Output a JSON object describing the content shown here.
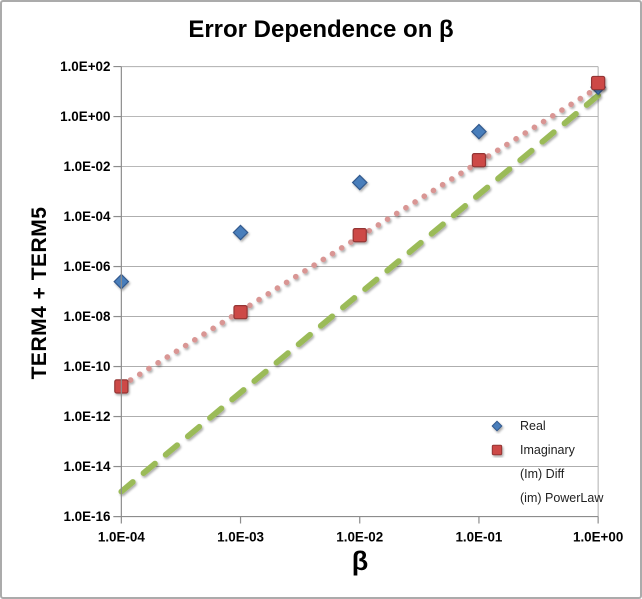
{
  "window": {
    "background": "#ffffff",
    "border_color": "#ababab"
  },
  "chart_data": {
    "type": "scatter",
    "title": "Error Dependence on β",
    "xlabel": "β",
    "ylabel": "TERM4 + TERM5",
    "x_scale": "log",
    "y_scale": "log",
    "xlim": [
      0.0001,
      1
    ],
    "ylim": [
      1e-16,
      100
    ],
    "x_ticks": {
      "values": [
        0.0001,
        0.001,
        0.01,
        0.1,
        1
      ],
      "labels": [
        "1.0E-04",
        "1.0E-03",
        "1.0E-02",
        "1.0E-01",
        "1.0E+00"
      ]
    },
    "y_ticks": {
      "values": [
        100,
        1,
        0.01,
        0.0001,
        1e-06,
        1e-08,
        1e-10,
        1e-12,
        1e-14,
        1e-16
      ],
      "labels": [
        "1.0E+02",
        "1.0E+00",
        "1.0E-02",
        "1.0E-04",
        "1.0E-06",
        "1.0E-08",
        "1.0E-10",
        "1.0E-12",
        "1.0E-14",
        "1.0E-16"
      ]
    },
    "grid": {
      "horizontal": true,
      "vertical": false,
      "right_edge_line": true
    },
    "legend_position": "inside-bottom-right",
    "axis_color": "#8c8c8c",
    "gridline_color": "#aeaeae",
    "series": [
      {
        "name": "Real",
        "type": "scatter",
        "marker": "diamond",
        "color": "#4a7ebb",
        "edge_color": "#30588c",
        "x": [
          0.0001,
          0.001,
          0.01,
          0.1,
          1
        ],
        "y": [
          2.5e-07,
          2.3e-05,
          0.0023,
          0.25,
          15
        ]
      },
      {
        "name": "Imaginary",
        "type": "scatter",
        "marker": "square",
        "color": "#cd4a46",
        "edge_color": "#943634",
        "x": [
          0.0001,
          0.001,
          0.01,
          0.1,
          1
        ],
        "y": [
          1.6e-11,
          1.5e-08,
          1.8e-05,
          0.018,
          22
        ]
      },
      {
        "name": "(Im) Diff",
        "type": "line",
        "style": "dashed",
        "color": "#9bbb59",
        "x": [
          0.0001,
          1
        ],
        "y": [
          1e-15,
          7
        ]
      },
      {
        "name": "(im) PowerLaw",
        "type": "line",
        "style": "dotted",
        "color": "#d99694",
        "x": [
          0.0001,
          0.88
        ],
        "y": [
          1.7e-11,
          10
        ]
      }
    ]
  }
}
